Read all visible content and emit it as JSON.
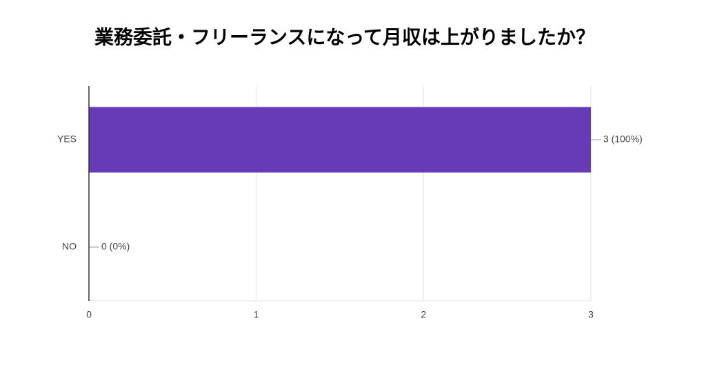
{
  "chart_data": {
    "type": "hbar",
    "title": "業務委託・フリーランスになって月収は上がりましたか？",
    "categories": [
      "YES",
      "NO"
    ],
    "values": [
      3,
      0
    ],
    "value_labels": [
      "3 (100%)",
      "0 (0%)"
    ],
    "color": "#673ab7",
    "xlim": [
      0,
      3
    ],
    "xticks": [
      0,
      1,
      2,
      3
    ],
    "grid": true
  }
}
